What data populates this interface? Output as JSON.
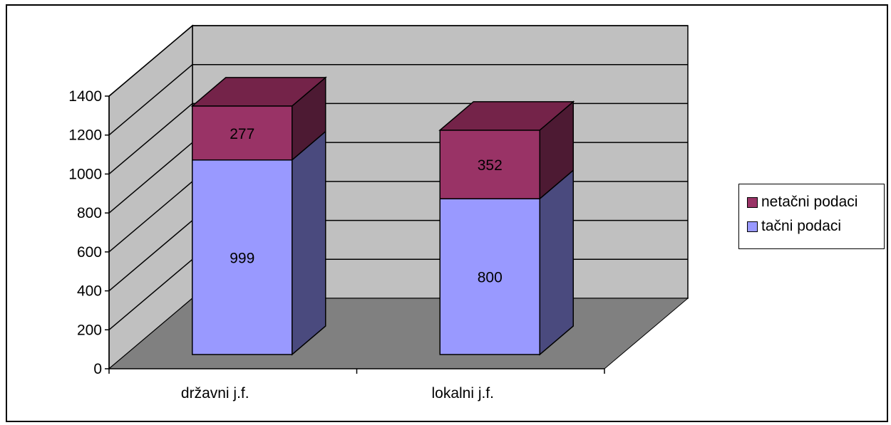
{
  "chart_data": {
    "type": "bar",
    "stacked": true,
    "three_d": true,
    "categories": [
      "državni j.f.",
      "lokalni j.f."
    ],
    "series": [
      {
        "name": "tačni podaci",
        "values": [
          999,
          800
        ],
        "color": "#9999ff",
        "side_color": "#4a4a7e"
      },
      {
        "name": "netačni podaci",
        "values": [
          277,
          352
        ],
        "color": "#993366",
        "side_color": "#4d1a33"
      }
    ],
    "ylim": [
      0,
      1400
    ],
    "yticks": [
      "0",
      "200",
      "400",
      "600",
      "800",
      "1000",
      "1200",
      "1400"
    ],
    "grid": true,
    "legend": "right",
    "wall_color": "#c0c0c0",
    "floor_color": "#808080"
  }
}
